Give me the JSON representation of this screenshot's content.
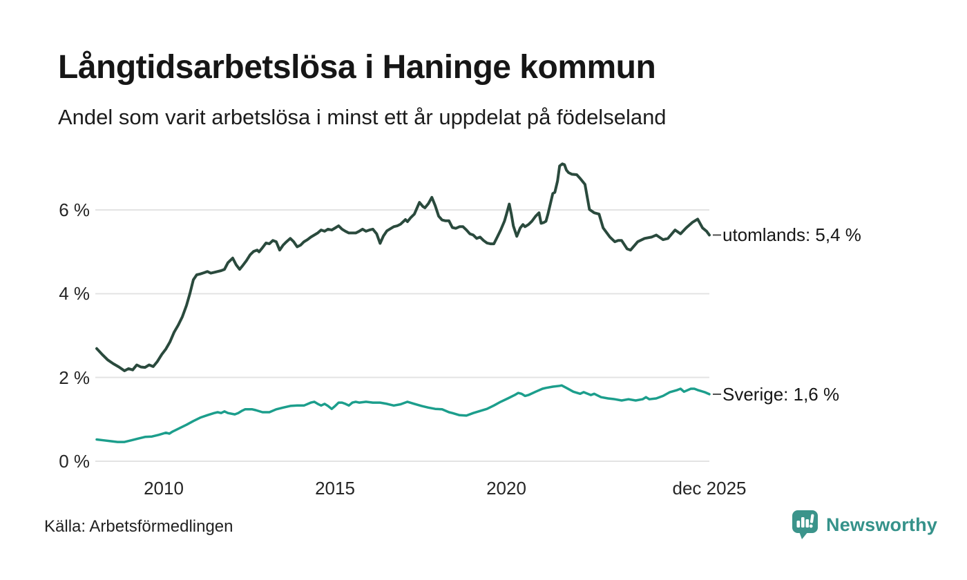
{
  "page": {
    "title": "Långtidsarbetslösa i Haninge kommun",
    "subtitle": "Andel som varit arbetslösa i minst ett år uppdelat på födelseland",
    "source": "Källa: Arbetsförmedlingen",
    "brand": "Newsworthy",
    "colors": {
      "utomlands_line": "#2a4a3d",
      "sverige_line": "#1c9e8c",
      "gridline": "#e3e3e3",
      "end_tick": "#4d4d4d",
      "brand_teal": "#3b948b",
      "text": "#161616"
    }
  },
  "chart_data": {
    "type": "line",
    "title": "Långtidsarbetslösa i Haninge kommun",
    "subtitle": "Andel som varit arbetslösa i minst ett år uppdelat på födelseland",
    "xlabel": "",
    "ylabel": "",
    "grid": true,
    "legend_position": "end-of-line-labels",
    "x_range": [
      "jan 2008",
      "dec 2025"
    ],
    "y_range": [
      0,
      7.5
    ],
    "x_axis": {
      "ticks": [
        {
          "t": 2010.0,
          "label": "2010"
        },
        {
          "t": 2015.0,
          "label": "2015"
        },
        {
          "t": 2020.0,
          "label": "2020"
        },
        {
          "t": 2025.92,
          "label": "dec 2025"
        }
      ]
    },
    "y_axis": {
      "ticks": [
        {
          "v": 0,
          "label": "0 %"
        },
        {
          "v": 2,
          "label": "2 %"
        },
        {
          "v": 4,
          "label": "4 %"
        },
        {
          "v": 6,
          "label": "6 %"
        }
      ]
    },
    "series": [
      {
        "name": "utomlands",
        "color": "#2a4a3d",
        "width": 4,
        "end_label": "utomlands: 5,4 %",
        "end_value": 5.4,
        "points": [
          [
            2008.04,
            2.69
          ],
          [
            2008.2,
            2.55
          ],
          [
            2008.36,
            2.42
          ],
          [
            2008.52,
            2.33
          ],
          [
            2008.69,
            2.25
          ],
          [
            2008.85,
            2.16
          ],
          [
            2008.97,
            2.21
          ],
          [
            2009.09,
            2.18
          ],
          [
            2009.21,
            2.3
          ],
          [
            2009.33,
            2.25
          ],
          [
            2009.45,
            2.24
          ],
          [
            2009.57,
            2.3
          ],
          [
            2009.69,
            2.26
          ],
          [
            2009.81,
            2.38
          ],
          [
            2009.94,
            2.55
          ],
          [
            2010.06,
            2.68
          ],
          [
            2010.18,
            2.85
          ],
          [
            2010.3,
            3.08
          ],
          [
            2010.42,
            3.25
          ],
          [
            2010.54,
            3.45
          ],
          [
            2010.66,
            3.72
          ],
          [
            2010.76,
            4.0
          ],
          [
            2010.86,
            4.33
          ],
          [
            2010.96,
            4.45
          ],
          [
            2011.06,
            4.47
          ],
          [
            2011.17,
            4.5
          ],
          [
            2011.27,
            4.53
          ],
          [
            2011.37,
            4.49
          ],
          [
            2011.47,
            4.51
          ],
          [
            2011.57,
            4.53
          ],
          [
            2011.67,
            4.55
          ],
          [
            2011.77,
            4.58
          ],
          [
            2011.87,
            4.74
          ],
          [
            2012.01,
            4.85
          ],
          [
            2012.11,
            4.69
          ],
          [
            2012.21,
            4.58
          ],
          [
            2012.31,
            4.68
          ],
          [
            2012.41,
            4.79
          ],
          [
            2012.52,
            4.93
          ],
          [
            2012.62,
            5.01
          ],
          [
            2012.72,
            5.04
          ],
          [
            2012.78,
            5.0
          ],
          [
            2012.88,
            5.1
          ],
          [
            2012.98,
            5.21
          ],
          [
            2013.08,
            5.19
          ],
          [
            2013.18,
            5.27
          ],
          [
            2013.28,
            5.24
          ],
          [
            2013.38,
            5.04
          ],
          [
            2013.48,
            5.16
          ],
          [
            2013.58,
            5.24
          ],
          [
            2013.69,
            5.32
          ],
          [
            2013.79,
            5.24
          ],
          [
            2013.89,
            5.12
          ],
          [
            2013.99,
            5.16
          ],
          [
            2014.09,
            5.24
          ],
          [
            2014.19,
            5.29
          ],
          [
            2014.29,
            5.35
          ],
          [
            2014.39,
            5.4
          ],
          [
            2014.49,
            5.45
          ],
          [
            2014.59,
            5.52
          ],
          [
            2014.69,
            5.49
          ],
          [
            2014.79,
            5.54
          ],
          [
            2014.9,
            5.52
          ],
          [
            2015.0,
            5.57
          ],
          [
            2015.1,
            5.62
          ],
          [
            2015.2,
            5.54
          ],
          [
            2015.3,
            5.49
          ],
          [
            2015.4,
            5.45
          ],
          [
            2015.5,
            5.45
          ],
          [
            2015.6,
            5.45
          ],
          [
            2015.7,
            5.49
          ],
          [
            2015.8,
            5.54
          ],
          [
            2015.9,
            5.49
          ],
          [
            2016.0,
            5.52
          ],
          [
            2016.1,
            5.54
          ],
          [
            2016.21,
            5.43
          ],
          [
            2016.31,
            5.2
          ],
          [
            2016.41,
            5.38
          ],
          [
            2016.51,
            5.5
          ],
          [
            2016.61,
            5.55
          ],
          [
            2016.71,
            5.6
          ],
          [
            2016.81,
            5.62
          ],
          [
            2016.91,
            5.66
          ],
          [
            2017.05,
            5.77
          ],
          [
            2017.11,
            5.72
          ],
          [
            2017.21,
            5.82
          ],
          [
            2017.31,
            5.9
          ],
          [
            2017.46,
            6.18
          ],
          [
            2017.56,
            6.08
          ],
          [
            2017.62,
            6.05
          ],
          [
            2017.72,
            6.15
          ],
          [
            2017.82,
            6.3
          ],
          [
            2017.92,
            6.1
          ],
          [
            2018.02,
            5.85
          ],
          [
            2018.12,
            5.76
          ],
          [
            2018.22,
            5.74
          ],
          [
            2018.32,
            5.74
          ],
          [
            2018.42,
            5.58
          ],
          [
            2018.52,
            5.56
          ],
          [
            2018.63,
            5.6
          ],
          [
            2018.73,
            5.6
          ],
          [
            2018.83,
            5.52
          ],
          [
            2018.93,
            5.43
          ],
          [
            2019.03,
            5.4
          ],
          [
            2019.13,
            5.32
          ],
          [
            2019.23,
            5.35
          ],
          [
            2019.33,
            5.27
          ],
          [
            2019.43,
            5.21
          ],
          [
            2019.53,
            5.19
          ],
          [
            2019.63,
            5.19
          ],
          [
            2019.73,
            5.35
          ],
          [
            2019.83,
            5.52
          ],
          [
            2019.94,
            5.73
          ],
          [
            2020.0,
            5.9
          ],
          [
            2020.08,
            6.14
          ],
          [
            2020.14,
            5.9
          ],
          [
            2020.2,
            5.62
          ],
          [
            2020.3,
            5.37
          ],
          [
            2020.4,
            5.57
          ],
          [
            2020.48,
            5.65
          ],
          [
            2020.54,
            5.6
          ],
          [
            2020.64,
            5.65
          ],
          [
            2020.74,
            5.73
          ],
          [
            2020.85,
            5.85
          ],
          [
            2020.95,
            5.93
          ],
          [
            2021.01,
            5.68
          ],
          [
            2021.09,
            5.7
          ],
          [
            2021.15,
            5.73
          ],
          [
            2021.21,
            5.9
          ],
          [
            2021.29,
            6.18
          ],
          [
            2021.35,
            6.39
          ],
          [
            2021.41,
            6.42
          ],
          [
            2021.49,
            6.69
          ],
          [
            2021.55,
            7.05
          ],
          [
            2021.63,
            7.1
          ],
          [
            2021.69,
            7.08
          ],
          [
            2021.75,
            6.95
          ],
          [
            2021.81,
            6.89
          ],
          [
            2021.91,
            6.85
          ],
          [
            2022.05,
            6.84
          ],
          [
            2022.15,
            6.75
          ],
          [
            2022.29,
            6.61
          ],
          [
            2022.42,
            6.01
          ],
          [
            2022.56,
            5.93
          ],
          [
            2022.7,
            5.9
          ],
          [
            2022.82,
            5.57
          ],
          [
            2023.02,
            5.35
          ],
          [
            2023.16,
            5.24
          ],
          [
            2023.26,
            5.27
          ],
          [
            2023.36,
            5.27
          ],
          [
            2023.52,
            5.07
          ],
          [
            2023.62,
            5.04
          ],
          [
            2023.83,
            5.24
          ],
          [
            2024.03,
            5.32
          ],
          [
            2024.23,
            5.35
          ],
          [
            2024.37,
            5.4
          ],
          [
            2024.57,
            5.29
          ],
          [
            2024.71,
            5.32
          ],
          [
            2024.92,
            5.52
          ],
          [
            2025.08,
            5.43
          ],
          [
            2025.24,
            5.57
          ],
          [
            2025.42,
            5.7
          ],
          [
            2025.58,
            5.78
          ],
          [
            2025.72,
            5.57
          ],
          [
            2025.84,
            5.49
          ],
          [
            2025.92,
            5.4
          ]
        ]
      },
      {
        "name": "Sverige",
        "color": "#1c9e8c",
        "width": 3.5,
        "end_label": "Sverige: 1,6 %",
        "end_value": 1.6,
        "points": [
          [
            2008.04,
            0.52
          ],
          [
            2008.24,
            0.5
          ],
          [
            2008.44,
            0.48
          ],
          [
            2008.65,
            0.46
          ],
          [
            2008.85,
            0.46
          ],
          [
            2009.05,
            0.5
          ],
          [
            2009.25,
            0.54
          ],
          [
            2009.45,
            0.58
          ],
          [
            2009.65,
            0.59
          ],
          [
            2009.85,
            0.63
          ],
          [
            2010.06,
            0.68
          ],
          [
            2010.16,
            0.66
          ],
          [
            2010.26,
            0.71
          ],
          [
            2010.46,
            0.79
          ],
          [
            2010.66,
            0.87
          ],
          [
            2010.86,
            0.96
          ],
          [
            2011.06,
            1.04
          ],
          [
            2011.27,
            1.1
          ],
          [
            2011.47,
            1.15
          ],
          [
            2011.57,
            1.17
          ],
          [
            2011.67,
            1.15
          ],
          [
            2011.77,
            1.19
          ],
          [
            2011.87,
            1.15
          ],
          [
            2012.07,
            1.12
          ],
          [
            2012.17,
            1.15
          ],
          [
            2012.27,
            1.2
          ],
          [
            2012.37,
            1.24
          ],
          [
            2012.58,
            1.24
          ],
          [
            2012.68,
            1.22
          ],
          [
            2012.88,
            1.17
          ],
          [
            2013.08,
            1.17
          ],
          [
            2013.28,
            1.24
          ],
          [
            2013.48,
            1.28
          ],
          [
            2013.69,
            1.32
          ],
          [
            2013.89,
            1.33
          ],
          [
            2014.09,
            1.33
          ],
          [
            2014.29,
            1.4
          ],
          [
            2014.39,
            1.42
          ],
          [
            2014.49,
            1.37
          ],
          [
            2014.59,
            1.33
          ],
          [
            2014.69,
            1.37
          ],
          [
            2014.79,
            1.32
          ],
          [
            2014.9,
            1.25
          ],
          [
            2015.0,
            1.32
          ],
          [
            2015.1,
            1.4
          ],
          [
            2015.2,
            1.4
          ],
          [
            2015.3,
            1.37
          ],
          [
            2015.4,
            1.33
          ],
          [
            2015.5,
            1.4
          ],
          [
            2015.6,
            1.42
          ],
          [
            2015.7,
            1.4
          ],
          [
            2015.9,
            1.42
          ],
          [
            2016.1,
            1.4
          ],
          [
            2016.31,
            1.4
          ],
          [
            2016.51,
            1.37
          ],
          [
            2016.71,
            1.33
          ],
          [
            2016.91,
            1.36
          ],
          [
            2017.11,
            1.42
          ],
          [
            2017.31,
            1.37
          ],
          [
            2017.52,
            1.32
          ],
          [
            2017.72,
            1.28
          ],
          [
            2017.92,
            1.25
          ],
          [
            2018.12,
            1.24
          ],
          [
            2018.32,
            1.17
          ],
          [
            2018.42,
            1.15
          ],
          [
            2018.63,
            1.1
          ],
          [
            2018.83,
            1.09
          ],
          [
            2019.03,
            1.15
          ],
          [
            2019.23,
            1.2
          ],
          [
            2019.43,
            1.25
          ],
          [
            2019.63,
            1.33
          ],
          [
            2019.83,
            1.42
          ],
          [
            2020.04,
            1.5
          ],
          [
            2020.24,
            1.58
          ],
          [
            2020.34,
            1.63
          ],
          [
            2020.44,
            1.61
          ],
          [
            2020.54,
            1.56
          ],
          [
            2020.64,
            1.58
          ],
          [
            2020.85,
            1.66
          ],
          [
            2021.05,
            1.73
          ],
          [
            2021.15,
            1.75
          ],
          [
            2021.35,
            1.78
          ],
          [
            2021.55,
            1.8
          ],
          [
            2021.61,
            1.81
          ],
          [
            2021.75,
            1.75
          ],
          [
            2021.95,
            1.66
          ],
          [
            2022.15,
            1.61
          ],
          [
            2022.25,
            1.65
          ],
          [
            2022.46,
            1.58
          ],
          [
            2022.56,
            1.61
          ],
          [
            2022.76,
            1.53
          ],
          [
            2022.96,
            1.5
          ],
          [
            2023.16,
            1.48
          ],
          [
            2023.36,
            1.45
          ],
          [
            2023.56,
            1.48
          ],
          [
            2023.77,
            1.45
          ],
          [
            2023.97,
            1.48
          ],
          [
            2024.07,
            1.53
          ],
          [
            2024.17,
            1.48
          ],
          [
            2024.37,
            1.5
          ],
          [
            2024.57,
            1.56
          ],
          [
            2024.77,
            1.65
          ],
          [
            2024.98,
            1.7
          ],
          [
            2025.08,
            1.73
          ],
          [
            2025.18,
            1.66
          ],
          [
            2025.38,
            1.73
          ],
          [
            2025.48,
            1.73
          ],
          [
            2025.58,
            1.7
          ],
          [
            2025.78,
            1.65
          ],
          [
            2025.92,
            1.6
          ]
        ]
      }
    ],
    "source": "Källa: Arbetsförmedlingen"
  }
}
